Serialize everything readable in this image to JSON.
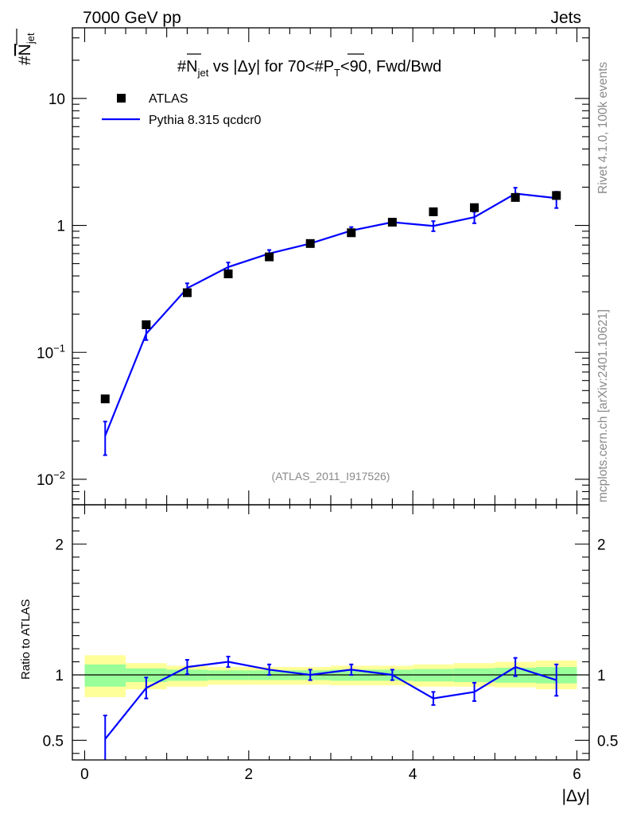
{
  "header": {
    "left_label": "7000 GeV pp",
    "right_label": "Jets",
    "side_top": "Rivet 4.1.0,  100k events",
    "side_bottom": "mcplots.cern.ch [arXiv:2401.10621]"
  },
  "chart_data": [
    {
      "type": "scatter",
      "title": "#N_jet vs |Δy| for 70<#P_T<90, Fwd/Bwd",
      "title_parts": {
        "hash1": "#",
        "n": "N",
        "jet_sub": "jet",
        "vs": " vs |Δy| for 70<#",
        "p": "P",
        "t_sub": "T",
        "tail": "<90, Fwd/Bwd"
      },
      "ylabel_parts": {
        "hash": "#",
        "n": "N",
        "sub": "jet"
      },
      "watermark": "(ATLAS_2011_I917526)",
      "yscale": "log",
      "xlim": [
        -0.15,
        6.15
      ],
      "ylim": [
        0.0063,
        36
      ],
      "y_ticks": [
        {
          "value": 0.01,
          "base": "10",
          "exp": "−2"
        },
        {
          "value": 0.1,
          "base": "10",
          "exp": "−1"
        },
        {
          "value": 1,
          "label": "1"
        },
        {
          "value": 10,
          "label": "10"
        }
      ],
      "legend": [
        {
          "name": "ATLAS",
          "marker": "square",
          "color": "#000000"
        },
        {
          "name": "Pythia 8.315 qcdcr0",
          "marker": "line",
          "color": "#0000ff"
        }
      ],
      "series": [
        {
          "name": "ATLAS",
          "x": [
            0.25,
            0.75,
            1.25,
            1.75,
            2.25,
            2.75,
            3.25,
            3.75,
            4.25,
            4.75,
            5.25,
            5.75
          ],
          "y": [
            0.043,
            0.165,
            0.295,
            0.415,
            0.565,
            0.72,
            0.875,
            1.06,
            1.28,
            1.38,
            1.66,
            1.72
          ]
        },
        {
          "name": "Pythia 8.315 qcdcr0",
          "x": [
            0.25,
            0.75,
            1.25,
            1.75,
            2.25,
            2.75,
            3.25,
            3.75,
            4.25,
            4.75,
            5.25,
            5.75
          ],
          "y": [
            0.022,
            0.14,
            0.32,
            0.47,
            0.6,
            0.72,
            0.91,
            1.06,
            0.99,
            1.16,
            1.78,
            1.64
          ],
          "err_low": [
            0.0065,
            0.015,
            0.03,
            0.04,
            0.04,
            0.04,
            0.06,
            0.06,
            0.09,
            0.12,
            0.16,
            0.27
          ],
          "err_high": [
            0.0065,
            0.015,
            0.03,
            0.04,
            0.04,
            0.04,
            0.06,
            0.06,
            0.09,
            0.12,
            0.2,
            0.2
          ]
        }
      ]
    },
    {
      "type": "line",
      "ylabel": "Ratio to ATLAS",
      "xlabel": "|Δy|",
      "xlim": [
        -0.15,
        6.15
      ],
      "ylim": [
        0.35,
        2.3
      ],
      "x_ticks": [
        0,
        2,
        4,
        6
      ],
      "y_ticks": [
        0.5,
        1,
        2
      ],
      "bins": [
        0,
        0.5,
        1.0,
        1.5,
        2.0,
        2.5,
        3.0,
        3.5,
        4.0,
        4.5,
        5.0,
        5.5,
        6.0
      ],
      "band_yellow": [
        [
          0.83,
          1.15
        ],
        [
          0.89,
          1.09
        ],
        [
          0.91,
          1.07
        ],
        [
          0.925,
          1.06
        ],
        [
          0.925,
          1.06
        ],
        [
          0.925,
          1.06
        ],
        [
          0.92,
          1.07
        ],
        [
          0.92,
          1.07
        ],
        [
          0.91,
          1.08
        ],
        [
          0.91,
          1.09
        ],
        [
          0.905,
          1.1
        ],
        [
          0.89,
          1.11
        ]
      ],
      "band_green": [
        [
          0.91,
          1.08
        ],
        [
          0.945,
          1.05
        ],
        [
          0.955,
          1.04
        ],
        [
          0.96,
          1.035
        ],
        [
          0.96,
          1.035
        ],
        [
          0.96,
          1.035
        ],
        [
          0.955,
          1.04
        ],
        [
          0.955,
          1.04
        ],
        [
          0.95,
          1.045
        ],
        [
          0.945,
          1.05
        ],
        [
          0.94,
          1.055
        ],
        [
          0.935,
          1.06
        ]
      ],
      "series": [
        {
          "name": "Pythia 8.315 qcdcr0 / ATLAS",
          "x": [
            0.25,
            0.75,
            1.25,
            1.75,
            2.25,
            2.75,
            3.25,
            3.75,
            4.25,
            4.75,
            5.25,
            5.75
          ],
          "y": [
            0.51,
            0.9,
            1.06,
            1.1,
            1.04,
            1.0,
            1.04,
            1.0,
            0.82,
            0.87,
            1.06,
            0.96
          ],
          "err_low": [
            0.18,
            0.08,
            0.055,
            0.04,
            0.04,
            0.04,
            0.04,
            0.04,
            0.05,
            0.07,
            0.07,
            0.12
          ],
          "err_high": [
            0.18,
            0.08,
            0.055,
            0.04,
            0.04,
            0.04,
            0.04,
            0.04,
            0.05,
            0.07,
            0.07,
            0.12
          ]
        }
      ]
    }
  ]
}
